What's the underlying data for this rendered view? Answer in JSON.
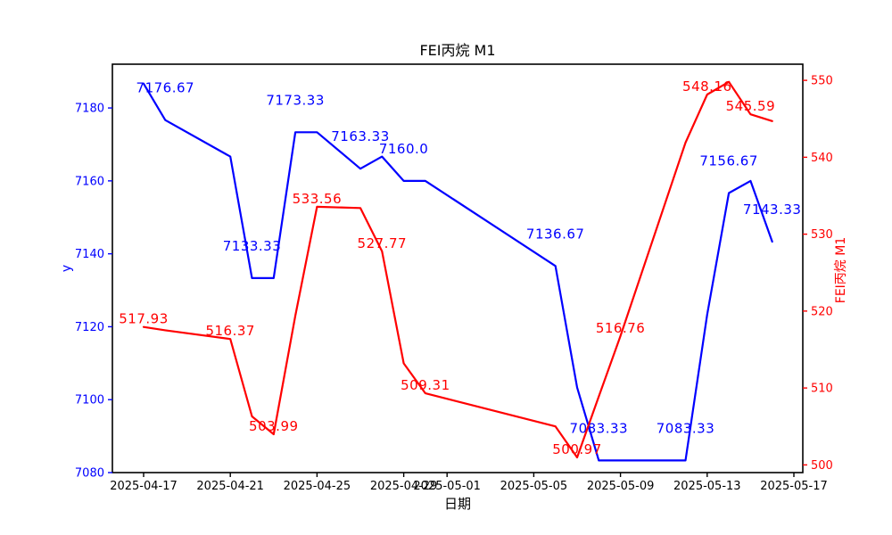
{
  "figure": {
    "background": "#ffffff"
  },
  "chart_data": {
    "type": "line",
    "title": "FEI丙烷 M1",
    "xlabel": "日期",
    "ylabel_left": "y",
    "ylabel_right": "FEI丙烷 M1",
    "grid": false,
    "legend": "none",
    "x_axis": {
      "color": "#000000",
      "tick_labels": [
        "2025-04-17",
        "2025-04-21",
        "2025-04-25",
        "2025-04-29",
        "2025-05-01",
        "2025-05-05",
        "2025-05-09",
        "2025-05-13",
        "2025-05-17"
      ]
    },
    "y_left": {
      "color": "#0000ff",
      "ticks": [
        "7080",
        "7100",
        "7120",
        "7140",
        "7160",
        "7180"
      ],
      "range": [
        7080,
        7192
      ]
    },
    "y_right": {
      "color": "#ff0000",
      "ticks": [
        "500",
        "510",
        "520",
        "530",
        "540",
        "550"
      ],
      "range": [
        499,
        552.1
      ]
    },
    "series": [
      {
        "name": "y",
        "axis": "left",
        "color": "#0000ff",
        "dates": [
          "2025-04-17",
          "2025-04-18",
          "2025-04-21",
          "2025-04-22",
          "2025-04-23",
          "2025-04-24",
          "2025-04-25",
          "2025-04-27",
          "2025-04-28",
          "2025-04-29",
          "2025-04-30",
          "2025-05-06",
          "2025-05-07",
          "2025-05-08",
          "2025-05-09",
          "2025-05-12",
          "2025-05-13",
          "2025-05-14",
          "2025-05-15",
          "2025-05-16"
        ],
        "values": [
          7186.67,
          7176.67,
          7166.67,
          7133.33,
          7133.33,
          7173.33,
          7173.33,
          7163.33,
          7166.67,
          7160.0,
          7160.0,
          7136.67,
          7103.33,
          7083.33,
          7083.33,
          7083.33,
          7123.33,
          7156.67,
          7160.0,
          7143.33
        ],
        "point_labels": [
          null,
          "7176.67",
          null,
          "7133.33",
          null,
          "7173.33",
          null,
          "7163.33",
          null,
          "7160.0",
          null,
          "7136.67",
          null,
          "7083.33",
          null,
          "7083.33",
          null,
          "7156.67",
          null,
          "7143.33"
        ]
      },
      {
        "name": "FEI丙烷 M1",
        "axis": "right",
        "color": "#ff0000",
        "dates": [
          "2025-04-17",
          "2025-04-18",
          "2025-04-21",
          "2025-04-22",
          "2025-04-23",
          "2025-04-24",
          "2025-04-25",
          "2025-04-27",
          "2025-04-28",
          "2025-04-29",
          "2025-04-30",
          "2025-05-06",
          "2025-05-07",
          "2025-05-08",
          "2025-05-09",
          "2025-05-12",
          "2025-05-13",
          "2025-05-14",
          "2025-05-15",
          "2025-05-16"
        ],
        "values": [
          517.93,
          517.5,
          516.37,
          506.3,
          503.99,
          519.4,
          533.56,
          533.4,
          527.77,
          513.2,
          509.31,
          505.0,
          500.97,
          508.9,
          516.76,
          541.9,
          548.16,
          549.8,
          545.59,
          544.7
        ],
        "point_labels": [
          "517.93",
          null,
          "516.37",
          null,
          "503.99",
          null,
          "533.56",
          null,
          "527.77",
          null,
          "509.31",
          null,
          "500.97",
          null,
          "516.76",
          null,
          "548.16",
          null,
          "545.59",
          null
        ]
      }
    ]
  }
}
